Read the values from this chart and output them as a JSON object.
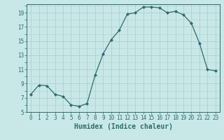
{
  "x": [
    0,
    1,
    2,
    3,
    4,
    5,
    6,
    7,
    8,
    9,
    10,
    11,
    12,
    13,
    14,
    15,
    16,
    17,
    18,
    19,
    20,
    21,
    22,
    23
  ],
  "y": [
    7.5,
    8.8,
    8.7,
    7.5,
    7.2,
    6.0,
    5.8,
    6.2,
    10.2,
    13.2,
    15.2,
    16.5,
    18.8,
    19.0,
    19.8,
    19.8,
    19.7,
    19.0,
    19.2,
    18.7,
    17.5,
    14.7,
    11.0,
    10.8
  ],
  "xlabel": "Humidex (Indice chaleur)",
  "xlim": [
    -0.5,
    23.5
  ],
  "ylim": [
    5,
    20.2
  ],
  "yticks": [
    5,
    7,
    9,
    11,
    13,
    15,
    17,
    19
  ],
  "xticks": [
    0,
    1,
    2,
    3,
    4,
    5,
    6,
    7,
    8,
    9,
    10,
    11,
    12,
    13,
    14,
    15,
    16,
    17,
    18,
    19,
    20,
    21,
    22,
    23
  ],
  "xtick_labels": [
    "0",
    "1",
    "2",
    "3",
    "4",
    "5",
    "6",
    "7",
    "8",
    "9",
    "10",
    "11",
    "12",
    "13",
    "14",
    "15",
    "16",
    "17",
    "18",
    "19",
    "20",
    "21",
    "22",
    "23"
  ],
  "line_color": "#2e6b6b",
  "marker": "D",
  "marker_size": 2.0,
  "bg_color": "#c8e8e8",
  "grid_color": "#b0d0d0",
  "label_fontsize": 7.0,
  "tick_fontsize": 5.5
}
